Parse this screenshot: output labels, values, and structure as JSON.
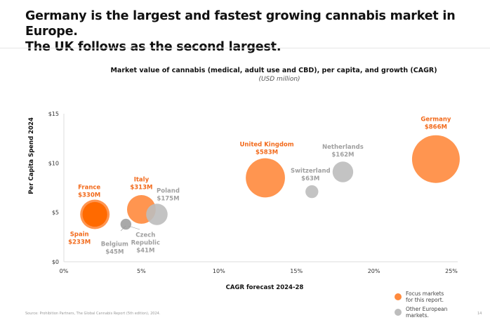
{
  "headline": {
    "line1": "Germany is the largest and fastest growing cannabis market in Europe.",
    "line2": "The UK follows as the second largest."
  },
  "source": "Source: Prohibition Partners, The Global Cannabis Report (5th edition), 2024.",
  "page_number": "14",
  "chart_data": {
    "type": "scatter",
    "title": "Market value of cannabis (medical, adult use and CBD), per capita, and growth (CAGR)",
    "subtitle": "(USD million)",
    "xlabel": "CAGR forecast 2024-28",
    "ylabel": "Per Capita Spend 2024",
    "xlim": [
      0,
      25
    ],
    "ylim": [
      0,
      15
    ],
    "x_ticks": [
      "0%",
      "5%",
      "10%",
      "15%",
      "20%",
      "25%"
    ],
    "y_ticks": [
      "$0",
      "$5",
      "$10",
      "$15"
    ],
    "grid": false,
    "bubble_size": "market value (USD million)",
    "legend": {
      "placement": "bottom-right",
      "items": [
        {
          "label": "Focus markets for this report.",
          "color": "#ff8a3d"
        },
        {
          "label": "Other European markets.",
          "color": "#bdbdbd"
        }
      ]
    },
    "colors": {
      "focus": "#ff8a3d",
      "focus_dark": "#ff6a00",
      "other": "#bdbdbd",
      "other_label": "#a0a0a0",
      "focus_label": "#f26a1b"
    },
    "points": [
      {
        "name": "France",
        "value_label": "$330M",
        "value": 330,
        "x": 2,
        "y": 4.8,
        "group": "focus"
      },
      {
        "name": "Spain",
        "value_label": "$233M",
        "value": 233,
        "x": 2,
        "y": 4.8,
        "group": "focus"
      },
      {
        "name": "Italy",
        "value_label": "$313M",
        "value": 313,
        "x": 5,
        "y": 5.3,
        "group": "focus"
      },
      {
        "name": "Poland",
        "value_label": "$175M",
        "value": 175,
        "x": 6,
        "y": 4.8,
        "group": "other"
      },
      {
        "name": "Belgium",
        "value_label": "$45M",
        "value": 45,
        "x": 4,
        "y": 3.8,
        "group": "other"
      },
      {
        "name": "Czech Republic",
        "value_label": "$41M",
        "value": 41,
        "x": 4,
        "y": 3.8,
        "group": "other"
      },
      {
        "name": "United Kingdom",
        "value_label": "$583M",
        "value": 583,
        "x": 13,
        "y": 8.5,
        "group": "focus"
      },
      {
        "name": "Switzerland",
        "value_label": "$63M",
        "value": 63,
        "x": 16,
        "y": 7.1,
        "group": "other"
      },
      {
        "name": "Netherlands",
        "value_label": "$162M",
        "value": 162,
        "x": 18,
        "y": 9.1,
        "group": "other"
      },
      {
        "name": "Germany",
        "value_label": "$866M",
        "value": 866,
        "x": 24,
        "y": 10.4,
        "group": "focus"
      }
    ]
  }
}
